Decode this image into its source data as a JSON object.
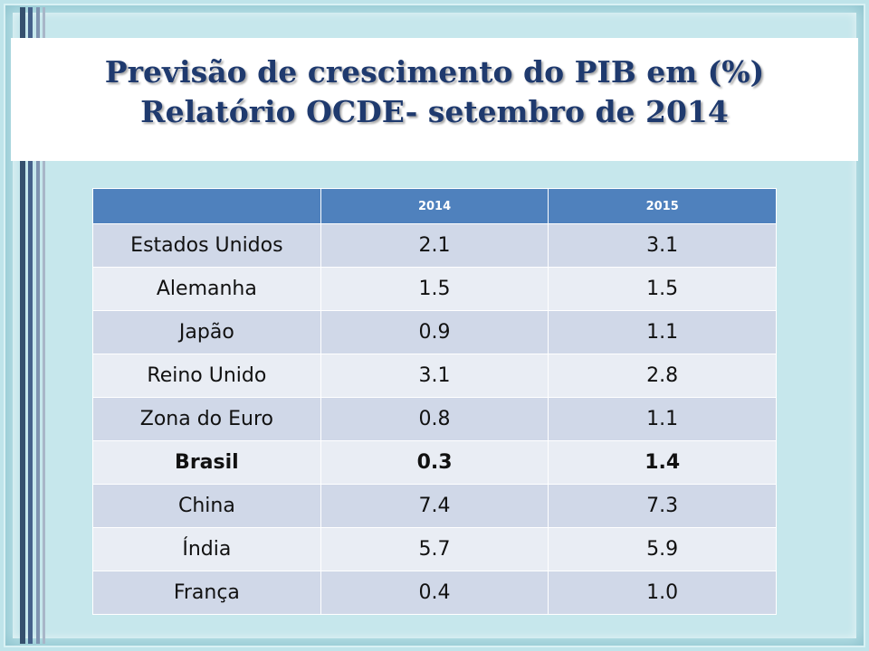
{
  "title": {
    "line1": "Previsão de crescimento  do PIB em (%)",
    "line2": "Relatório OCDE- setembro de 2014"
  },
  "table": {
    "headers": [
      "",
      "2014",
      "2015"
    ],
    "rows": [
      {
        "country": "Estados Unidos",
        "y2014": "2.1",
        "y2015": "3.1"
      },
      {
        "country": "Alemanha",
        "y2014": "1.5",
        "y2015": "1.5"
      },
      {
        "country": "Japão",
        "y2014": "0.9",
        "y2015": "1.1"
      },
      {
        "country": "Reino Unido",
        "y2014": "3.1",
        "y2015": "2.8"
      },
      {
        "country": "Zona do Euro",
        "y2014": "0.8",
        "y2015": "1.1"
      },
      {
        "country": "Brasil",
        "y2014": "0.3",
        "y2015": "1.4"
      },
      {
        "country": "China",
        "y2014": "7.4",
        "y2015": "7.3"
      },
      {
        "country": "Índia",
        "y2014": "5.7",
        "y2015": "5.9"
      },
      {
        "country": "França",
        "y2014": "0.4",
        "y2015": "1.0"
      }
    ]
  },
  "colors": {
    "title": "#1f3a6e",
    "header": "#4f81bd",
    "row_dark": "#d0d8e8",
    "row_light": "#e9edf4",
    "background": "#bfe4ea"
  }
}
